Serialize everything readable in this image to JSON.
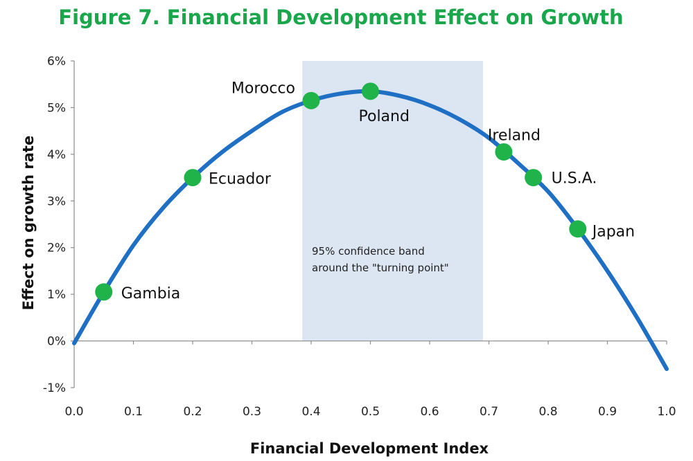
{
  "chart_data": {
    "type": "line",
    "title": "Figure 7. Financial Development Effect on Growth",
    "xlabel": "Financial Development Index",
    "ylabel": "Effect on growth rate",
    "xlim": [
      0.0,
      1.0
    ],
    "ylim": [
      -1,
      6
    ],
    "x_ticks": [
      "0.0",
      "0.1",
      "0.2",
      "0.3",
      "0.4",
      "0.5",
      "0.6",
      "0.7",
      "0.8",
      "0.9",
      "1.0"
    ],
    "y_ticks": [
      "-1%",
      "0%",
      "1%",
      "2%",
      "3%",
      "4%",
      "5%",
      "6%"
    ],
    "curve": {
      "name": "Effect on growth",
      "color": "#1f6fc4",
      "x": [
        0.0,
        0.05,
        0.1,
        0.15,
        0.2,
        0.25,
        0.3,
        0.35,
        0.4,
        0.45,
        0.5,
        0.55,
        0.6,
        0.65,
        0.7,
        0.75,
        0.8,
        0.85,
        0.9,
        0.95,
        1.0
      ],
      "y": [
        -0.05,
        1.05,
        2.05,
        2.85,
        3.5,
        4.05,
        4.5,
        4.9,
        5.15,
        5.3,
        5.35,
        5.25,
        5.05,
        4.75,
        4.35,
        3.8,
        3.2,
        2.4,
        1.5,
        0.5,
        -0.6
      ]
    },
    "points": [
      {
        "name": "Gambia",
        "x": 0.05,
        "y": 1.05
      },
      {
        "name": "Ecuador",
        "x": 0.2,
        "y": 3.5
      },
      {
        "name": "Morocco",
        "x": 0.4,
        "y": 5.15
      },
      {
        "name": "Poland",
        "x": 0.5,
        "y": 5.35
      },
      {
        "name": "Ireland",
        "x": 0.725,
        "y": 4.05
      },
      {
        "name": "U.S.A.",
        "x": 0.775,
        "y": 3.5
      },
      {
        "name": "Japan",
        "x": 0.85,
        "y": 2.4
      }
    ],
    "point_color": "#1fb34a",
    "confidence_band": {
      "x_range": [
        0.385,
        0.69
      ],
      "label_line1": "95%  confidence band",
      "label_line2": "around the \"turning point\"",
      "color": "#dce6f2"
    }
  }
}
